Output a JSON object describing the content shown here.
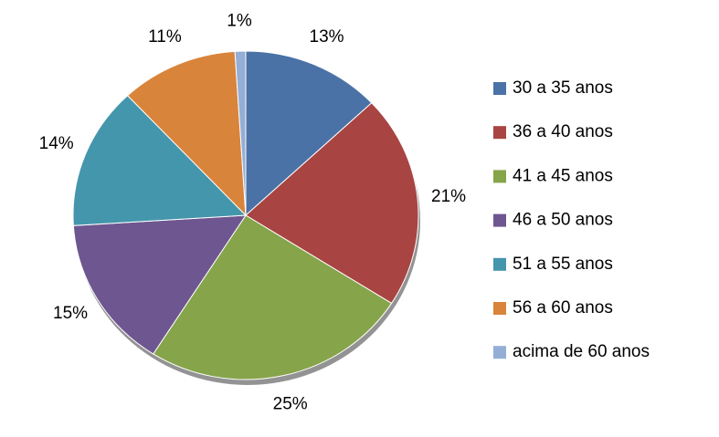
{
  "chart_data": {
    "type": "pie",
    "categories": [
      "30 a 35 anos",
      "36 a 40 anos",
      "41 a 45 anos",
      "46 a 50 anos",
      "51 a 55 anos",
      "56 a 60 anos",
      "acima de 60 anos"
    ],
    "values": [
      13,
      21,
      25,
      15,
      14,
      11,
      1
    ],
    "value_labels": [
      "13%",
      "21%",
      "25%",
      "15%",
      "14%",
      "11%",
      "1%"
    ],
    "colors": [
      "#4a72a6",
      "#a84442",
      "#86a44a",
      "#6e5690",
      "#4496ac",
      "#d9843b",
      "#95aed6"
    ],
    "legend": "right"
  }
}
